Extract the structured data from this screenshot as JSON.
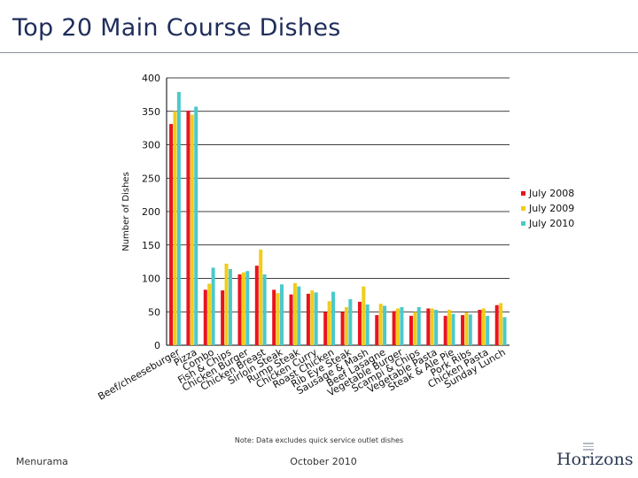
{
  "page": {
    "title": "Top 20 Main Course Dishes",
    "note": "Note: Data excludes quick service outlet dishes",
    "footer_left": "Menurama",
    "footer_center": "October 2010",
    "logo_text": "Horizons"
  },
  "chart_data": {
    "type": "bar",
    "title": "",
    "xlabel": "",
    "ylabel": "Number of Dishes",
    "ylim": [
      0,
      400
    ],
    "yticks": [
      0,
      50,
      100,
      150,
      200,
      250,
      300,
      350,
      400
    ],
    "grid": true,
    "legend_position": "right",
    "categories": [
      "Beef/cheeseburger",
      "Pizza",
      "Combo",
      "Fish & Chips",
      "Chicken Burger",
      "Chicken Breast",
      "Sirloin Steak",
      "Rump Steak",
      "Chicken Curry",
      "Roast Chicken",
      "Rib Eye Steak",
      "Sausage & Mash",
      "Beef Lasagne",
      "Vegetable Burger",
      "Scampi & Chips",
      "Vegetable Pasta",
      "Steak & Ale Pie",
      "Pork Ribs",
      "Chicken Pasta",
      "Sunday Lunch"
    ],
    "series": [
      {
        "name": "July 2008",
        "color": "#e8141e",
        "values": [
          331,
          351,
          83,
          82,
          106,
          119,
          83,
          76,
          77,
          50,
          50,
          65,
          45,
          51,
          44,
          55,
          44,
          45,
          53,
          60
        ]
      },
      {
        "name": "July 2009",
        "color": "#f2cc1a",
        "values": [
          350,
          345,
          92,
          122,
          109,
          143,
          78,
          93,
          82,
          66,
          57,
          88,
          62,
          55,
          50,
          55,
          53,
          49,
          55,
          63
        ]
      },
      {
        "name": "July 2010",
        "color": "#4cc9c9",
        "values": [
          379,
          357,
          116,
          114,
          111,
          106,
          91,
          88,
          79,
          80,
          69,
          61,
          59,
          57,
          57,
          53,
          47,
          46,
          44,
          42
        ]
      }
    ]
  }
}
